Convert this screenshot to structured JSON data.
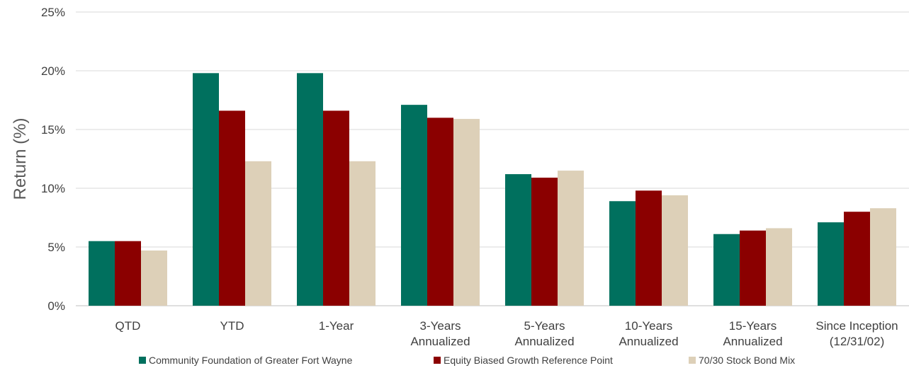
{
  "chart_data": {
    "type": "bar",
    "title": "",
    "xlabel": "",
    "ylabel": "Return (%)",
    "ylim": [
      0,
      25
    ],
    "yticks": [
      "0%",
      "5%",
      "10%",
      "15%",
      "20%",
      "25%"
    ],
    "ytick_values": [
      0,
      5,
      10,
      15,
      20,
      25
    ],
    "grid": true,
    "legend_position": "bottom",
    "categories": [
      [
        "QTD"
      ],
      [
        "YTD"
      ],
      [
        "1-Year"
      ],
      [
        "3-Years",
        "Annualized"
      ],
      [
        "5-Years",
        "Annualized"
      ],
      [
        "10-Years",
        "Annualized"
      ],
      [
        "15-Years",
        "Annualized"
      ],
      [
        "Since Inception",
        "(12/31/02)"
      ]
    ],
    "series": [
      {
        "name": "Community Foundation of Greater Fort Wayne",
        "color": "#00705e",
        "values": [
          5.5,
          19.8,
          19.8,
          17.1,
          11.2,
          8.9,
          6.1,
          7.1
        ]
      },
      {
        "name": "Equity Biased Growth Reference Point",
        "color": "#8b0000",
        "values": [
          5.5,
          16.6,
          16.6,
          16.0,
          10.9,
          9.8,
          6.4,
          8.0
        ]
      },
      {
        "name": "70/30 Stock Bond Mix",
        "color": "#ddd0b8",
        "values": [
          4.7,
          12.3,
          12.3,
          15.9,
          11.5,
          9.4,
          6.6,
          8.3
        ]
      }
    ]
  }
}
